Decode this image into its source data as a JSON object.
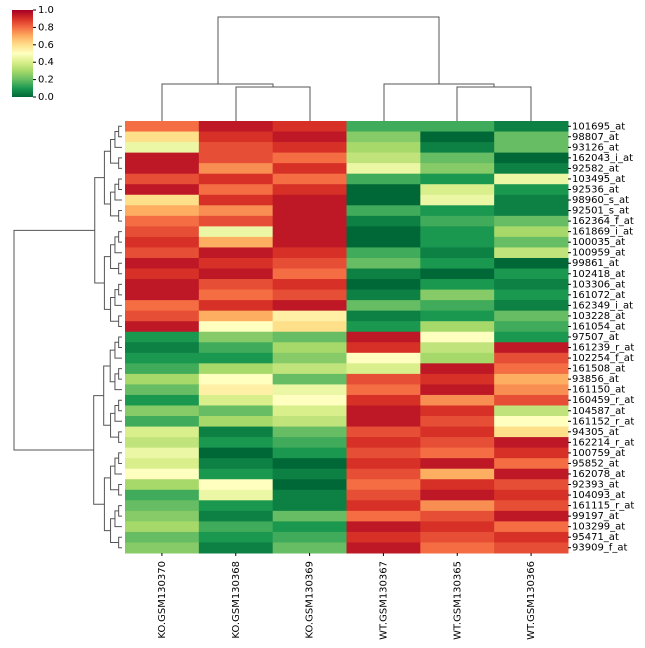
{
  "chart_data": {
    "type": "heatmap",
    "colormap": "RdYlGn",
    "zlim": [
      0,
      1
    ],
    "zticks": [
      {
        "value": 0,
        "label": "0.0"
      },
      0.2,
      0.4,
      0.6,
      0.8,
      {
        "value": 1,
        "label": "1.0"
      }
    ],
    "columns": [
      "KO.GSM130370",
      "KO.GSM130368",
      "KO.GSM130369",
      "WT.GSM130367",
      "WT.GSM130365",
      "WT.GSM130366"
    ],
    "rows": [
      "101695_at",
      "98807_at",
      "93126_at",
      "162043_i_at",
      "92582_at",
      "103495_at",
      "92536_at",
      "98960_s_at",
      "92501_s_at",
      "162364_f_at",
      "161869_i_at",
      "100035_at",
      "100959_at",
      "99861_at",
      "102418_at",
      "103306_at",
      "161072_at",
      "162349_i_at",
      "103228_at",
      "161054_at",
      "97507_at",
      "161239_r_at",
      "102254_f_at",
      "161508_at",
      "93856_at",
      "161150_at",
      "160459_r_at",
      "104587_at",
      "161152_r_at",
      "94305_at",
      "162214_r_at",
      "100759_at",
      "95852_at",
      "162078_at",
      "92393_at",
      "104093_at",
      "161115_r_at",
      "99197_at",
      "103299_at",
      "95471_at",
      "93909_f_at"
    ],
    "values": [
      [
        0.8,
        0.95,
        0.9,
        0.15,
        0.15,
        0.05
      ],
      [
        0.6,
        0.9,
        0.95,
        0.25,
        0.0,
        0.2
      ],
      [
        0.45,
        0.85,
        0.9,
        0.3,
        0.05,
        0.2
      ],
      [
        0.95,
        0.85,
        0.8,
        0.35,
        0.2,
        0.0
      ],
      [
        0.95,
        0.75,
        0.9,
        0.45,
        0.25,
        0.05
      ],
      [
        0.85,
        0.9,
        0.8,
        0.15,
        0.1,
        0.45
      ],
      [
        0.95,
        0.8,
        0.9,
        0.0,
        0.4,
        0.1
      ],
      [
        0.6,
        0.9,
        0.95,
        0.0,
        0.45,
        0.05
      ],
      [
        0.7,
        0.75,
        0.95,
        0.15,
        0.1,
        0.05
      ],
      [
        0.8,
        0.85,
        0.95,
        0.05,
        0.15,
        0.2
      ],
      [
        0.85,
        0.45,
        0.95,
        0.0,
        0.1,
        0.3
      ],
      [
        0.9,
        0.7,
        0.95,
        0.0,
        0.1,
        0.2
      ],
      [
        0.85,
        0.95,
        0.9,
        0.15,
        0.05,
        0.35
      ],
      [
        0.95,
        0.9,
        0.85,
        0.2,
        0.1,
        0.0
      ],
      [
        0.9,
        0.95,
        0.8,
        0.05,
        0.0,
        0.1
      ],
      [
        0.95,
        0.85,
        0.9,
        0.0,
        0.1,
        0.05
      ],
      [
        0.95,
        0.8,
        0.85,
        0.05,
        0.25,
        0.1
      ],
      [
        0.8,
        0.9,
        0.95,
        0.2,
        0.15,
        0.05
      ],
      [
        0.85,
        0.7,
        0.55,
        0.05,
        0.1,
        0.2
      ],
      [
        0.95,
        0.5,
        0.6,
        0.1,
        0.3,
        0.15
      ],
      [
        0.1,
        0.25,
        0.2,
        0.95,
        0.5,
        0.1
      ],
      [
        0.05,
        0.15,
        0.3,
        0.9,
        0.35,
        0.95
      ],
      [
        0.1,
        0.1,
        0.25,
        0.5,
        0.3,
        0.85
      ],
      [
        0.15,
        0.3,
        0.35,
        0.4,
        0.95,
        0.8
      ],
      [
        0.3,
        0.5,
        0.2,
        0.85,
        0.9,
        0.7
      ],
      [
        0.2,
        0.55,
        0.45,
        0.8,
        0.95,
        0.75
      ],
      [
        0.1,
        0.4,
        0.5,
        0.9,
        0.75,
        0.85
      ],
      [
        0.25,
        0.2,
        0.4,
        0.95,
        0.9,
        0.35
      ],
      [
        0.15,
        0.3,
        0.35,
        0.95,
        0.85,
        0.5
      ],
      [
        0.4,
        0.05,
        0.2,
        0.85,
        0.9,
        0.6
      ],
      [
        0.35,
        0.1,
        0.15,
        0.9,
        0.85,
        0.95
      ],
      [
        0.45,
        0.0,
        0.1,
        0.85,
        0.8,
        0.9
      ],
      [
        0.4,
        0.05,
        0.0,
        0.9,
        0.95,
        0.8
      ],
      [
        0.5,
        0.1,
        0.05,
        0.85,
        0.7,
        0.95
      ],
      [
        0.3,
        0.5,
        0.0,
        0.8,
        0.9,
        0.85
      ],
      [
        0.15,
        0.45,
        0.05,
        0.85,
        0.95,
        0.9
      ],
      [
        0.2,
        0.1,
        0.05,
        0.9,
        0.75,
        0.85
      ],
      [
        0.25,
        0.05,
        0.2,
        0.8,
        0.85,
        0.95
      ],
      [
        0.3,
        0.15,
        0.1,
        0.95,
        0.9,
        0.8
      ],
      [
        0.2,
        0.1,
        0.15,
        0.9,
        0.85,
        0.9
      ],
      [
        0.25,
        0.05,
        0.2,
        0.95,
        0.8,
        0.85
      ]
    ]
  }
}
